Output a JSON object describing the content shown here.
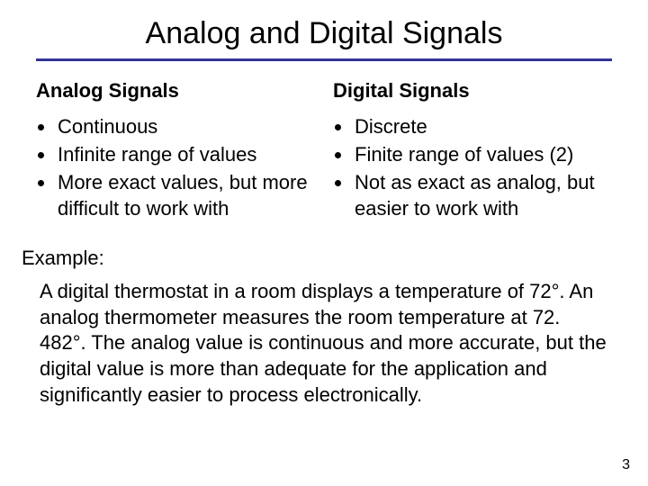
{
  "title": "Analog and Digital Signals",
  "left": {
    "heading": "Analog Signals",
    "bullets": [
      "Continuous",
      "Infinite range of values",
      "More exact values, but more difficult to work with"
    ]
  },
  "right": {
    "heading": "Digital Signals",
    "bullets": [
      "Discrete",
      "Finite range of values (2)",
      "Not as exact as analog, but easier to work with"
    ]
  },
  "example": {
    "label": "Example:",
    "body": "A digital thermostat in a room displays a temperature of 72°. An analog thermometer measures the room temperature at 72. 482°. The analog value is continuous and more accurate, but the digital value is more than adequate for the application and significantly easier to process electronically."
  },
  "page_number": "3",
  "colors": {
    "rule": "#333399",
    "text": "#000000",
    "background": "#ffffff"
  }
}
